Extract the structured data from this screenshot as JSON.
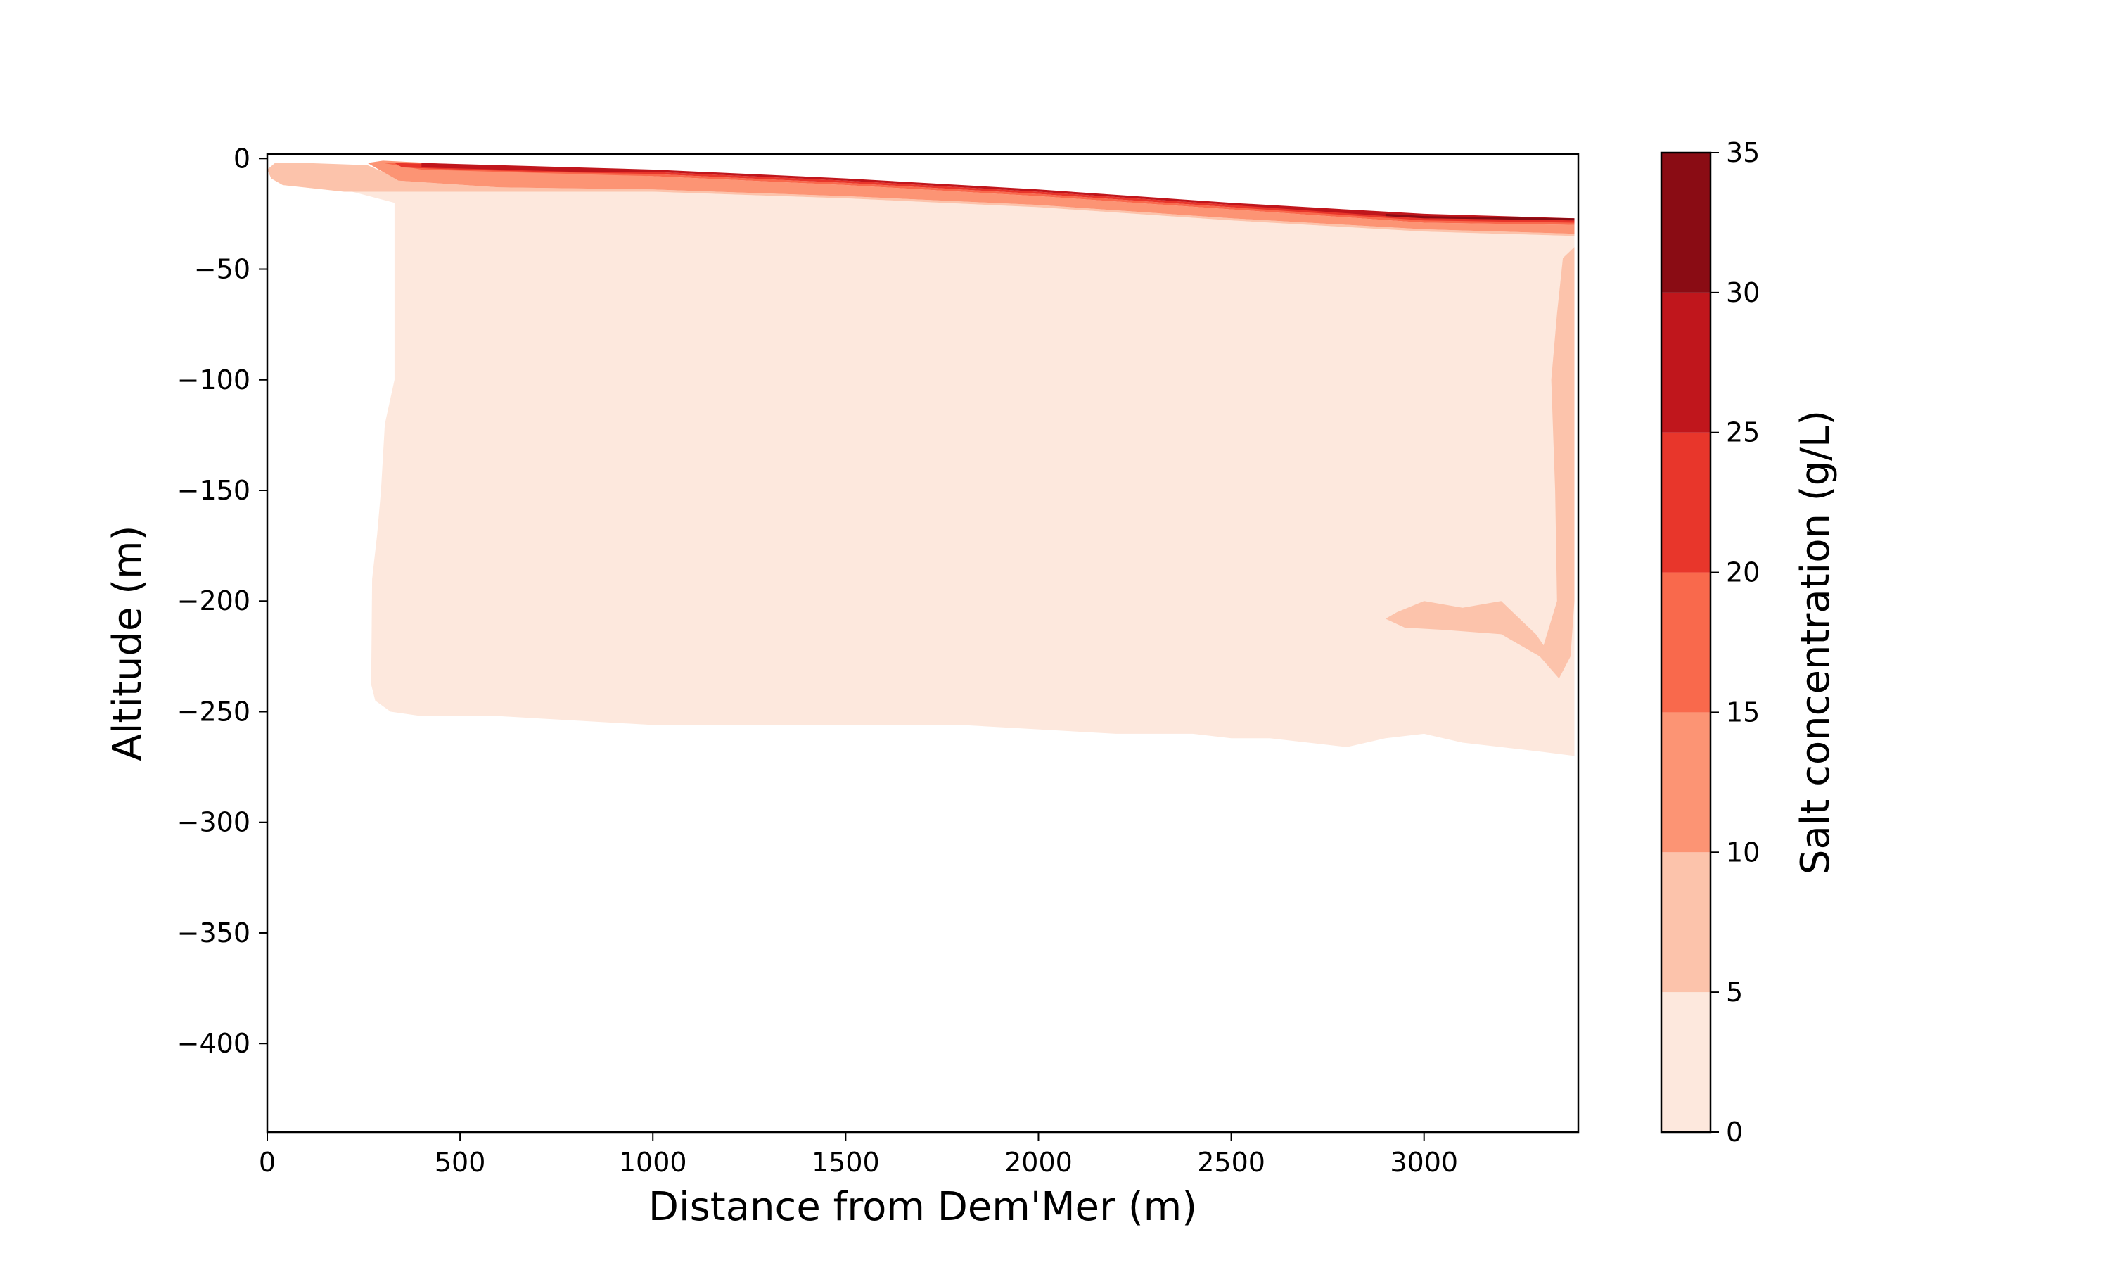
{
  "chart_data": {
    "type": "heatmap",
    "subtype": "filled-contour cross-section",
    "title": "",
    "xlabel": "Distance from Dem'Mer (m)",
    "ylabel": "Altitude (m)",
    "xlim": [
      0,
      3400
    ],
    "ylim": [
      -440,
      2
    ],
    "xticks": [
      0,
      500,
      1000,
      1500,
      2000,
      2500,
      3000
    ],
    "xtick_labels": [
      "0",
      "500",
      "1000",
      "1500",
      "2000",
      "2500",
      "3000"
    ],
    "yticks": [
      0,
      -50,
      -100,
      -150,
      -200,
      -250,
      -300,
      -350,
      -400
    ],
    "ytick_labels": [
      "0",
      "−50",
      "−100",
      "−150",
      "−200",
      "−250",
      "−300",
      "−350",
      "−400"
    ],
    "grid": false,
    "colormap": "Reds",
    "colorbar": {
      "label": "Salt concentration (g/L)",
      "levels": [
        0,
        5,
        10,
        15,
        20,
        25,
        30,
        35
      ],
      "tick_labels": [
        "0",
        "5",
        "10",
        "15",
        "20",
        "25",
        "30",
        "35"
      ],
      "colors": [
        "#fde8dd",
        "#fcc3ab",
        "#fc9474",
        "#f9694c",
        "#e8362b",
        "#c0161c",
        "#8a0c14"
      ]
    },
    "regions": [
      {
        "level": "0-5 g/L",
        "color": "#fde8dd",
        "points": [
          [
            270,
            -228
          ],
          [
            272,
            -190
          ],
          [
            285,
            -170
          ],
          [
            295,
            -150
          ],
          [
            305,
            -120
          ],
          [
            330,
            -100
          ],
          [
            330,
            -20
          ],
          [
            220,
            -15
          ],
          [
            60,
            -10
          ],
          [
            20,
            -8
          ],
          [
            10,
            -5
          ],
          [
            0,
            -5
          ],
          [
            40,
            -12
          ],
          [
            200,
            -15
          ],
          [
            340,
            -15
          ],
          [
            600,
            -15
          ],
          [
            1000,
            -15
          ],
          [
            1500,
            -18
          ],
          [
            2000,
            -22
          ],
          [
            2500,
            -28
          ],
          [
            3000,
            -33
          ],
          [
            3390,
            -35
          ],
          [
            3390,
            -270
          ],
          [
            3300,
            -268
          ],
          [
            3100,
            -264
          ],
          [
            3000,
            -260
          ],
          [
            2900,
            -262
          ],
          [
            2800,
            -266
          ],
          [
            2700,
            -264
          ],
          [
            2600,
            -262
          ],
          [
            2500,
            -262
          ],
          [
            2400,
            -260
          ],
          [
            2200,
            -260
          ],
          [
            2000,
            -258
          ],
          [
            1800,
            -256
          ],
          [
            1600,
            -256
          ],
          [
            1400,
            -256
          ],
          [
            1200,
            -256
          ],
          [
            1000,
            -256
          ],
          [
            800,
            -254
          ],
          [
            600,
            -252
          ],
          [
            400,
            -252
          ],
          [
            320,
            -250
          ],
          [
            280,
            -245
          ],
          [
            270,
            -238
          ]
        ]
      },
      {
        "level": "5-10 g/L",
        "color": "#fcc3ab",
        "points": [
          [
            0,
            -5
          ],
          [
            20,
            -2
          ],
          [
            100,
            -2
          ],
          [
            260,
            -3
          ],
          [
            300,
            -6
          ],
          [
            340,
            -10
          ],
          [
            600,
            -13
          ],
          [
            1000,
            -14
          ],
          [
            1500,
            -17
          ],
          [
            2000,
            -21
          ],
          [
            2500,
            -27
          ],
          [
            3000,
            -32
          ],
          [
            3390,
            -34
          ],
          [
            3390,
            -35
          ],
          [
            3000,
            -33
          ],
          [
            2500,
            -28
          ],
          [
            2000,
            -22
          ],
          [
            1500,
            -18
          ],
          [
            1000,
            -15
          ],
          [
            600,
            -15
          ],
          [
            340,
            -15
          ],
          [
            200,
            -15
          ],
          [
            40,
            -12
          ],
          [
            10,
            -9
          ]
        ]
      },
      {
        "level": "5-10 g/L",
        "color": "#fcc3ab",
        "points": [
          [
            3390,
            -40
          ],
          [
            3360,
            -45
          ],
          [
            3345,
            -70
          ],
          [
            3330,
            -100
          ],
          [
            3340,
            -150
          ],
          [
            3345,
            -200
          ],
          [
            3310,
            -220
          ],
          [
            3290,
            -215
          ],
          [
            3200,
            -200
          ],
          [
            3100,
            -203
          ],
          [
            3000,
            -200
          ],
          [
            2930,
            -205
          ],
          [
            2900,
            -208
          ],
          [
            2950,
            -212
          ],
          [
            3050,
            -213
          ],
          [
            3200,
            -215
          ],
          [
            3300,
            -225
          ],
          [
            3350,
            -235
          ],
          [
            3380,
            -225
          ],
          [
            3390,
            -200
          ]
        ]
      },
      {
        "level": "10-15 g/L",
        "color": "#fc9474",
        "points": [
          [
            260,
            -2
          ],
          [
            300,
            -1
          ],
          [
            420,
            -2
          ],
          [
            600,
            -5
          ],
          [
            1000,
            -8
          ],
          [
            1500,
            -12
          ],
          [
            2000,
            -17
          ],
          [
            2500,
            -23
          ],
          [
            3000,
            -29
          ],
          [
            3390,
            -30
          ],
          [
            3390,
            -34
          ],
          [
            3000,
            -32
          ],
          [
            2500,
            -27
          ],
          [
            2000,
            -21
          ],
          [
            1500,
            -17
          ],
          [
            1000,
            -14
          ],
          [
            600,
            -13
          ],
          [
            340,
            -10
          ],
          [
            300,
            -6
          ]
        ]
      },
      {
        "level": "15-20 g/L",
        "color": "#f9694c",
        "points": [
          [
            300,
            -2
          ],
          [
            420,
            -2
          ],
          [
            600,
            -4
          ],
          [
            1000,
            -7
          ],
          [
            1500,
            -11
          ],
          [
            2000,
            -16
          ],
          [
            2500,
            -22
          ],
          [
            3000,
            -27
          ],
          [
            3390,
            -28
          ],
          [
            3390,
            -30
          ],
          [
            3000,
            -29
          ],
          [
            2500,
            -23
          ],
          [
            2000,
            -17
          ],
          [
            1500,
            -12
          ],
          [
            1000,
            -8
          ],
          [
            600,
            -6
          ],
          [
            400,
            -5
          ]
        ]
      },
      {
        "level": "20-25 g/L",
        "color": "#e8362b",
        "points": [
          [
            330,
            -2
          ],
          [
            500,
            -3
          ],
          [
            700,
            -4
          ],
          [
            1000,
            -6
          ],
          [
            1500,
            -10
          ],
          [
            2000,
            -15
          ],
          [
            2500,
            -21
          ],
          [
            3000,
            -26
          ],
          [
            3390,
            -28
          ],
          [
            3390,
            -29
          ],
          [
            3000,
            -28
          ],
          [
            2500,
            -22
          ],
          [
            2000,
            -16
          ],
          [
            1500,
            -11
          ],
          [
            1000,
            -7
          ],
          [
            700,
            -6
          ],
          [
            500,
            -5
          ],
          [
            350,
            -4
          ]
        ]
      },
      {
        "level": "25-30 g/L",
        "color": "#c0161c",
        "points": [
          [
            400,
            -2
          ],
          [
            600,
            -3
          ],
          [
            800,
            -4
          ],
          [
            1000,
            -5
          ],
          [
            1500,
            -9
          ],
          [
            2000,
            -14
          ],
          [
            2500,
            -20
          ],
          [
            2900,
            -24
          ],
          [
            3000,
            -25
          ],
          [
            3390,
            -27
          ],
          [
            3390,
            -28
          ],
          [
            3000,
            -27
          ],
          [
            2900,
            -26
          ],
          [
            2500,
            -21
          ],
          [
            2000,
            -15
          ],
          [
            1500,
            -10
          ],
          [
            1000,
            -6
          ],
          [
            800,
            -6
          ],
          [
            600,
            -5
          ],
          [
            400,
            -4
          ]
        ]
      },
      {
        "level": "30-35 g/L",
        "color": "#8a0c14",
        "points": [
          [
            2900,
            -25
          ],
          [
            3000,
            -26
          ],
          [
            3390,
            -27
          ],
          [
            3390,
            -28
          ],
          [
            3000,
            -27
          ],
          [
            2900,
            -26
          ]
        ]
      }
    ]
  }
}
